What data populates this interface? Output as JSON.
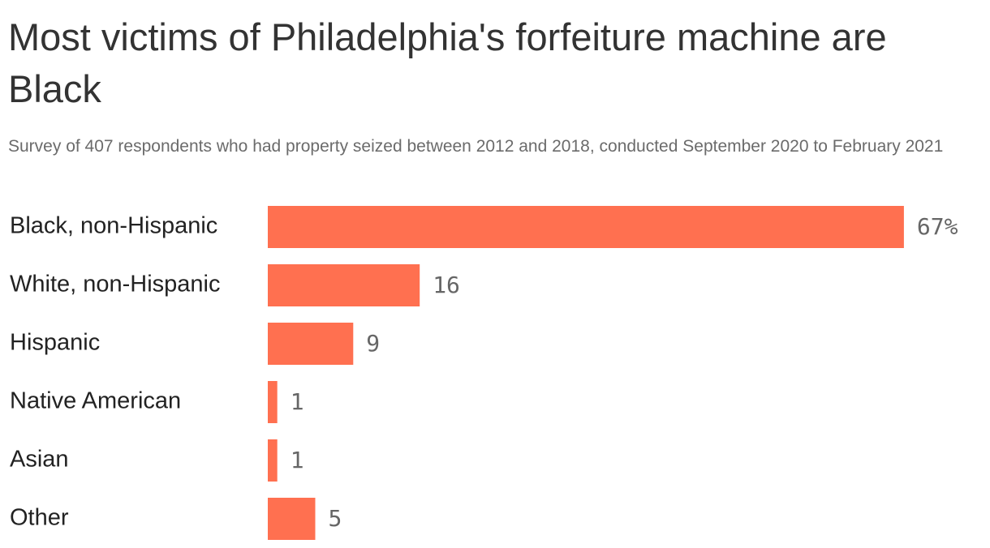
{
  "chart_data": {
    "type": "bar",
    "orientation": "horizontal",
    "title": "Most victims of Philadelphia's forfeiture machine are Black",
    "subtitle": "Survey of 407 respondents who had property seized between 2012 and 2018, conducted September 2020 to February 2021",
    "categories": [
      "Black, non-Hispanic",
      "White, non-Hispanic",
      "Hispanic",
      "Native American",
      "Asian",
      "Other"
    ],
    "values": [
      67,
      16,
      9,
      1,
      1,
      5
    ],
    "value_labels": [
      "67%",
      "16",
      "9",
      "1",
      "1",
      "5"
    ],
    "color": "#ff7050"
  }
}
